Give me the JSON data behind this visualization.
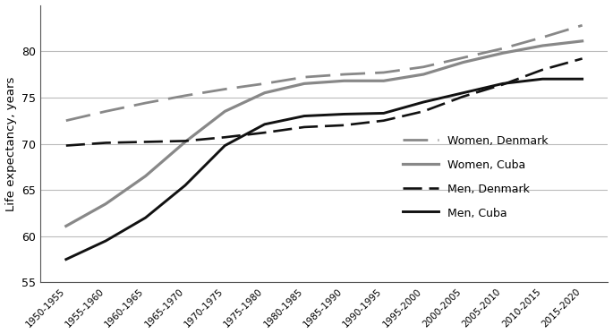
{
  "x_labels": [
    "1950-1955",
    "1955-1960",
    "1960-1965",
    "1965-1970",
    "1970-1975",
    "1975-1980",
    "1980-1985",
    "1985-1990",
    "1990-1995",
    "1995-2000",
    "2000-2005",
    "2005-2010",
    "2010-2015",
    "2015-2020"
  ],
  "women_denmark": [
    72.5,
    73.5,
    74.4,
    75.2,
    75.9,
    76.5,
    77.2,
    77.5,
    77.7,
    78.3,
    79.3,
    80.3,
    81.5,
    82.8
  ],
  "women_cuba": [
    61.1,
    63.5,
    66.5,
    70.2,
    73.5,
    75.5,
    76.5,
    76.8,
    76.8,
    77.5,
    78.8,
    79.8,
    80.6,
    81.1
  ],
  "men_denmark": [
    69.8,
    70.1,
    70.2,
    70.3,
    70.7,
    71.2,
    71.8,
    72.0,
    72.5,
    73.5,
    75.1,
    76.4,
    78.0,
    79.2
  ],
  "men_cuba": [
    57.5,
    59.5,
    62.0,
    65.5,
    69.8,
    72.1,
    73.0,
    73.2,
    73.3,
    74.5,
    75.5,
    76.5,
    77.0,
    77.0
  ],
  "ylabel": "Life expectancy, years",
  "ylim": [
    55,
    85
  ],
  "yticks": [
    55,
    60,
    65,
    70,
    75,
    80
  ],
  "legend_labels": [
    "Women, Denmark",
    "Women, Cuba",
    "Men, Denmark",
    "Men, Cuba"
  ],
  "gray_color": "#888888",
  "dark_color": "#111111"
}
